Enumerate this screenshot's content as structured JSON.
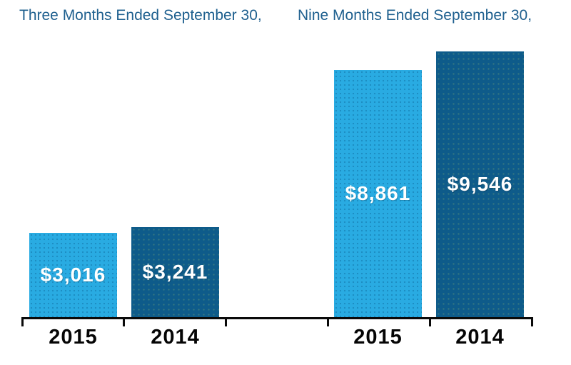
{
  "chart_data": {
    "type": "bar",
    "grid": false,
    "legend": "none",
    "ylim": [
      0,
      10000
    ],
    "value_prefix": "$",
    "groups": [
      {
        "title": "Three Months Ended September 30,",
        "bars": [
          {
            "year": "2015",
            "value": 3016,
            "label": "$3,016",
            "series": "2015"
          },
          {
            "year": "2014",
            "value": 3241,
            "label": "$3,241",
            "series": "2014"
          }
        ]
      },
      {
        "title": "Nine Months Ended September 30,",
        "bars": [
          {
            "year": "2015",
            "value": 8861,
            "label": "$8,861",
            "series": "2015"
          },
          {
            "year": "2014",
            "value": 9546,
            "label": "$9,546",
            "series": "2014"
          }
        ]
      }
    ],
    "colors": {
      "series_2015": "#29ABE2",
      "series_2014": "#0E5B8A",
      "title_text": "#1F608F",
      "axis": "#0a0a0a",
      "value_label": "#FFFFFF",
      "year_label": "#050505",
      "background": "#FFFFFF"
    }
  }
}
